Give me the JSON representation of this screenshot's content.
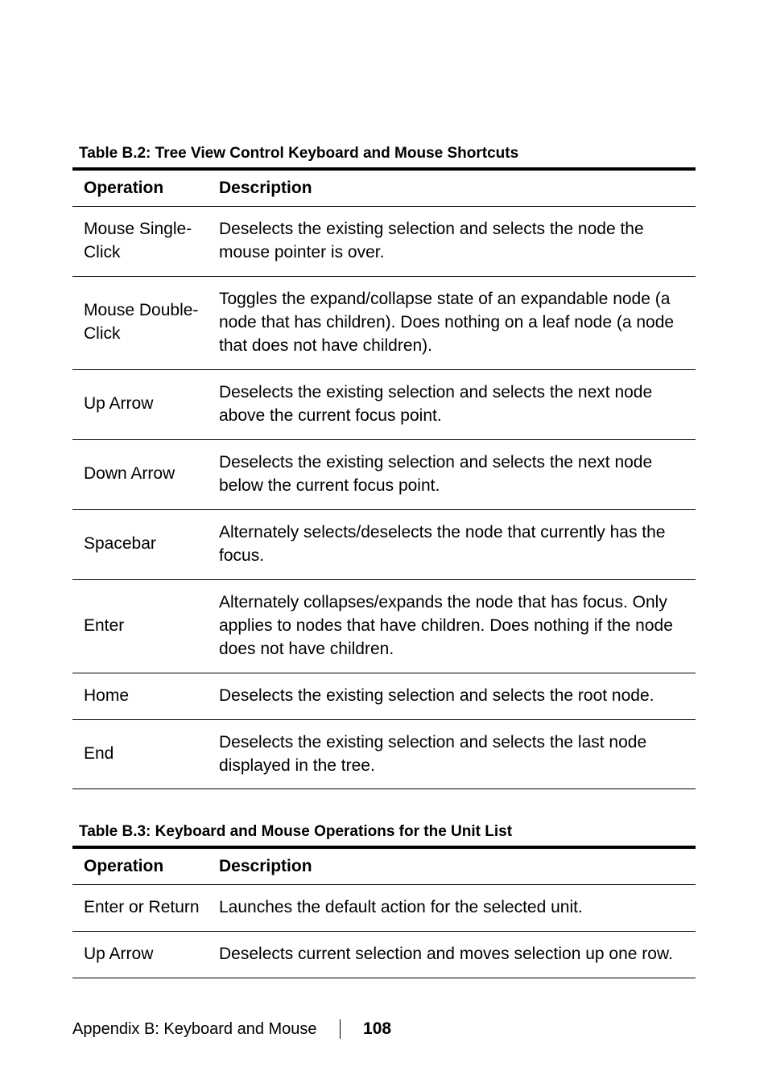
{
  "table1": {
    "caption": "Table B.2: Tree View Control Keyboard and Mouse Shortcuts",
    "headers": {
      "op": "Operation",
      "desc": "Description"
    },
    "rows": [
      {
        "op": "Mouse Single-Click",
        "desc": "Deselects the existing selection and selects the node the mouse pointer is over."
      },
      {
        "op": "Mouse Double-Click",
        "desc": "Toggles the expand/collapse state of an expandable node (a node that has children). Does nothing on a leaf node (a node that does not have children)."
      },
      {
        "op": "Up Arrow",
        "desc": "Deselects the existing selection and selects the next node above the current focus point."
      },
      {
        "op": "Down Arrow",
        "desc": "Deselects the existing selection and selects the next node below the current focus point."
      },
      {
        "op": "Spacebar",
        "desc": "Alternately selects/deselects the node that currently has the focus."
      },
      {
        "op": "Enter",
        "desc": "Alternately collapses/expands the node that has focus. Only applies to nodes that have children. Does nothing if the node does not have children."
      },
      {
        "op": "Home",
        "desc": "Deselects the existing selection and selects the root node."
      },
      {
        "op": "End",
        "desc": "Deselects the existing selection and selects the last node displayed in the tree."
      }
    ]
  },
  "table2": {
    "caption": "Table B.3: Keyboard and Mouse Operations for the Unit List",
    "headers": {
      "op": "Operation",
      "desc": "Description"
    },
    "rows": [
      {
        "op": "Enter or Return",
        "desc": "Launches the default action for the selected unit."
      },
      {
        "op": "Up Arrow",
        "desc": "Deselects current selection and moves selection up one row."
      }
    ]
  },
  "footer": {
    "section": "Appendix B: Keyboard and Mouse",
    "page": "108"
  }
}
